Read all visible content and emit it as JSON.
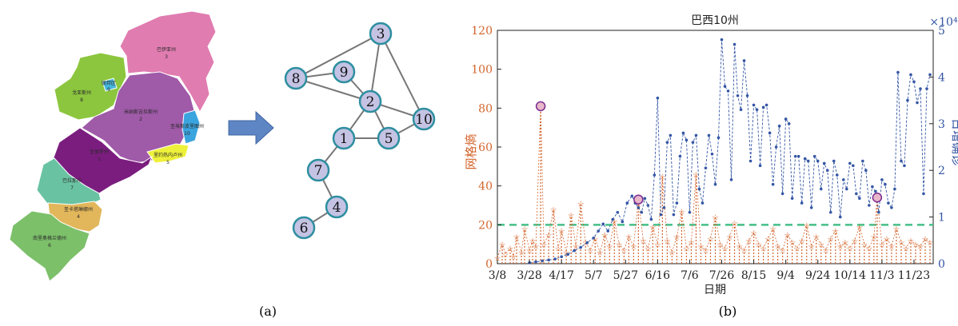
{
  "panel_a": {
    "caption": "(a)",
    "states": [
      {
        "id": "3",
        "name": "巴伊亚州",
        "num": "3",
        "color": "#e07cb0"
      },
      {
        "id": "9",
        "name": "联邦区",
        "num": "9",
        "color": "#47b7dd"
      },
      {
        "id": "8",
        "name": "戈亚斯州",
        "num": "8",
        "color": "#8cc63e"
      },
      {
        "id": "2",
        "name": "米纳斯吉拉斯州",
        "num": "2",
        "color": "#9f5aa8"
      },
      {
        "id": "10",
        "name": "圣埃斯皮里图州",
        "num": "10",
        "color": "#3aa4de"
      },
      {
        "id": "5",
        "name": "里约热内卢州",
        "num": "5",
        "color": "#eef13a"
      },
      {
        "id": "1",
        "name": "圣保罗州",
        "num": "1",
        "color": "#7b1d7f"
      },
      {
        "id": "7",
        "name": "巴拉那州",
        "num": "7",
        "color": "#69c3a2"
      },
      {
        "id": "4",
        "name": "圣卡塔琳娜州",
        "num": "4",
        "color": "#e2b65a"
      },
      {
        "id": "6",
        "name": "南里奥格兰德州",
        "num": "6",
        "color": "#7cc06a"
      }
    ],
    "graph": {
      "nodes": [
        "3",
        "8",
        "9",
        "2",
        "10",
        "1",
        "5",
        "7",
        "4",
        "6"
      ],
      "edges": [
        [
          "3",
          "8"
        ],
        [
          "3",
          "2"
        ],
        [
          "3",
          "10"
        ],
        [
          "8",
          "9"
        ],
        [
          "8",
          "2"
        ],
        [
          "9",
          "2"
        ],
        [
          "2",
          "10"
        ],
        [
          "2",
          "1"
        ],
        [
          "2",
          "5"
        ],
        [
          "1",
          "5"
        ],
        [
          "5",
          "10"
        ],
        [
          "1",
          "7"
        ],
        [
          "7",
          "4"
        ],
        [
          "4",
          "6"
        ]
      ],
      "node_color": "#c5c3e4",
      "node_border": "#2e8fa0"
    }
  },
  "panel_b": {
    "caption": "(b)",
    "chart_data": {
      "type": "line",
      "title": "巴西10州",
      "xlabel": "日期",
      "ylabel_left": "网格熵",
      "ylabel_right": "日增确诊",
      "right_multiplier": "×10⁴",
      "xticks": [
        "3/8",
        "3/28",
        "4/17",
        "5/7",
        "5/27",
        "6/16",
        "7/6",
        "7/26",
        "8/15",
        "9/4",
        "9/24",
        "10/14",
        "11/3",
        "11/23"
      ],
      "xtick_day": [
        0,
        20,
        40,
        60,
        80,
        100,
        120,
        140,
        160,
        180,
        200,
        220,
        240,
        260
      ],
      "xlim": [
        0,
        272
      ],
      "ylim_left": [
        0,
        120
      ],
      "yticks_left": [
        0,
        20,
        40,
        60,
        80,
        100,
        120
      ],
      "ylim_right": [
        0,
        5
      ],
      "yticks_right": [
        0,
        1,
        2,
        3,
        4,
        5
      ],
      "threshold": 20,
      "colors": {
        "entropy": "#d4652d",
        "confirmed": "#3456a4",
        "threshold": "#45bf88",
        "marker": "#7b2b8f"
      },
      "peak_markers": [
        {
          "day": 27,
          "value": 81
        },
        {
          "day": 88,
          "value": 33
        },
        {
          "day": 237,
          "value": 34
        }
      ],
      "series": [
        {
          "name": "网格熵",
          "x": [
            0,
            3,
            5,
            8,
            10,
            12,
            15,
            17,
            20,
            22,
            24,
            27,
            29,
            32,
            35,
            38,
            40,
            43,
            46,
            49,
            52,
            55,
            58,
            61,
            64,
            67,
            70,
            73,
            76,
            79,
            82,
            85,
            88,
            91,
            94,
            97,
            100,
            103,
            106,
            109,
            112,
            115,
            118,
            121,
            124,
            127,
            130,
            133,
            136,
            139,
            142,
            145,
            148,
            151,
            154,
            157,
            160,
            163,
            166,
            169,
            172,
            175,
            178,
            181,
            184,
            187,
            190,
            193,
            196,
            199,
            202,
            205,
            208,
            211,
            214,
            217,
            220,
            223,
            226,
            229,
            232,
            235,
            237,
            240,
            243,
            246,
            249,
            252,
            255,
            258,
            261,
            264,
            267,
            270
          ],
          "values": [
            3,
            10,
            5,
            8,
            4,
            14,
            6,
            18,
            7,
            12,
            9,
            81,
            10,
            15,
            28,
            8,
            17,
            6,
            25,
            9,
            31,
            11,
            7,
            13,
            6,
            15,
            9,
            22,
            10,
            7,
            14,
            9,
            33,
            12,
            8,
            19,
            10,
            45,
            12,
            6,
            14,
            27,
            8,
            11,
            46,
            9,
            7,
            13,
            24,
            10,
            8,
            14,
            21,
            9,
            7,
            12,
            16,
            10,
            8,
            13,
            18,
            9,
            7,
            15,
            11,
            8,
            12,
            20,
            9,
            14,
            10,
            7,
            13,
            17,
            9,
            11,
            8,
            12,
            19,
            10,
            8,
            14,
            34,
            10,
            13,
            9,
            18,
            11,
            8,
            12,
            10,
            9,
            13,
            11
          ]
        },
        {
          "name": "日增确诊",
          "x": [
            20,
            24,
            28,
            32,
            36,
            40,
            44,
            48,
            52,
            56,
            60,
            63,
            66,
            69,
            72,
            75,
            78,
            81,
            84,
            86,
            88,
            90,
            92,
            94,
            96,
            98,
            100,
            102,
            104,
            106,
            108,
            110,
            112,
            114,
            116,
            118,
            120,
            122,
            124,
            126,
            128,
            130,
            132,
            134,
            136,
            138,
            140,
            142,
            144,
            146,
            148,
            150,
            152,
            154,
            156,
            158,
            160,
            162,
            164,
            166,
            168,
            170,
            172,
            174,
            176,
            178,
            180,
            182,
            184,
            186,
            188,
            190,
            192,
            194,
            196,
            198,
            200,
            202,
            204,
            206,
            208,
            210,
            212,
            214,
            216,
            218,
            220,
            222,
            224,
            226,
            228,
            230,
            232,
            234,
            236,
            238,
            240,
            242,
            244,
            246,
            248,
            250,
            252,
            254,
            256,
            258,
            260,
            262,
            264,
            266,
            268,
            270
          ],
          "values": [
            0.02,
            0.04,
            0.06,
            0.08,
            0.1,
            0.15,
            0.2,
            0.28,
            0.35,
            0.45,
            0.55,
            0.7,
            0.85,
            0.7,
            0.95,
            1.1,
            0.9,
            1.3,
            1.45,
            1.3,
            1.2,
            1.1,
            1.4,
            1.25,
            0.95,
            1.9,
            3.55,
            1.05,
            1.2,
            2.6,
            2.75,
            1.05,
            1.3,
            2.3,
            2.8,
            2.65,
            1.1,
            2.6,
            2.75,
            1.6,
            1.3,
            2.05,
            2.75,
            2.35,
            1.7,
            2.7,
            4.8,
            3.8,
            3.7,
            1.8,
            4.7,
            3.6,
            3.3,
            4.35,
            3.6,
            2.2,
            3.4,
            3.3,
            2.1,
            3.35,
            3.4,
            2.8,
            1.7,
            2.5,
            2.95,
            1.5,
            3.1,
            3.0,
            1.4,
            2.3,
            2.3,
            1.3,
            2.25,
            2.2,
            1.2,
            2.3,
            2.2,
            1.6,
            2.15,
            2.0,
            1.1,
            2.2,
            1.9,
            1.0,
            1.8,
            1.6,
            2.15,
            2.1,
            1.5,
            1.4,
            2.2,
            2.0,
            1.25,
            1.65,
            1.55,
            1.1,
            1.8,
            1.7,
            1.3,
            1.2,
            1.6,
            4.1,
            2.2,
            2.1,
            3.5,
            4.05,
            3.9,
            3.45,
            3.75,
            1.5,
            3.75,
            4.05
          ]
        }
      ]
    }
  }
}
